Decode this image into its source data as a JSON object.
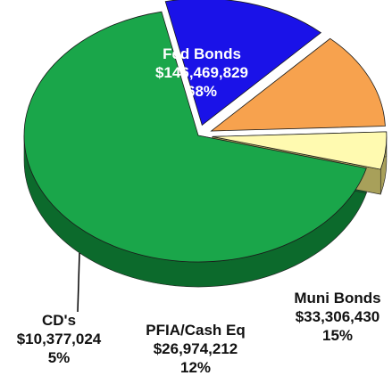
{
  "chart_data": {
    "type": "pie",
    "style": "3d-exploded",
    "slices": [
      {
        "label": "Fed Bonds",
        "value": 146469829,
        "value_text": "$146,469,829",
        "percent_text": "68%",
        "color": "#1aa64a",
        "side_color": "#0c6a2c",
        "text_color": "#ffffff"
      },
      {
        "label": "Muni Bonds",
        "value": 33306430,
        "value_text": "$33,306,430",
        "percent_text": "15%",
        "color": "#1a12e8",
        "side_color": "#080a80",
        "text_color": "#111111"
      },
      {
        "label": "PFIA/Cash Eq",
        "value": 26974212,
        "value_text": "$26,974,212",
        "percent_text": "12%",
        "color": "#f7a24e",
        "side_color": "#8a4a20",
        "text_color": "#111111"
      },
      {
        "label": "CD's",
        "value": 10377024,
        "value_text": "$10,377,024",
        "percent_text": "5%",
        "color": "#fffab0",
        "side_color": "#a8a05a",
        "text_color": "#111111"
      }
    ]
  }
}
